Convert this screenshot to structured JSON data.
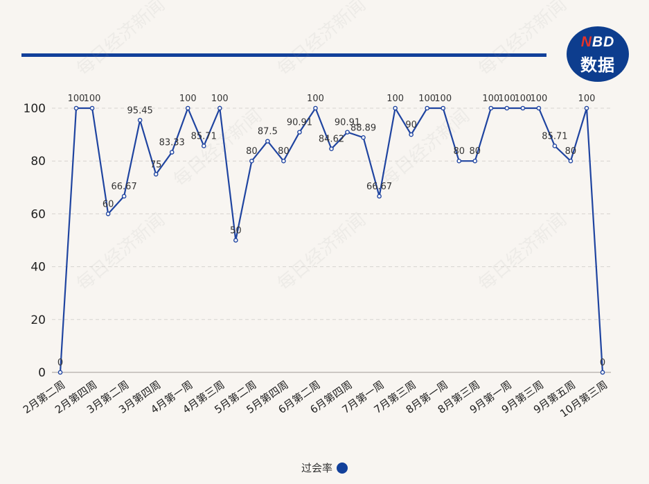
{
  "colors": {
    "line": "#1f44a0",
    "rule": "#12409a",
    "logo_bg": "#0d3d8e",
    "logo_accent": "#e5332a",
    "grid": "#d6d3cf",
    "background": "#f8f5f1"
  },
  "logo": {
    "line1_accent": "N",
    "line1_rest": "BD",
    "line2": "数据"
  },
  "watermark": "每日经济新闻",
  "chart_data": {
    "type": "line",
    "title": "",
    "xlabel": "",
    "ylabel": "",
    "ylim": [
      0,
      100
    ],
    "yticks": [
      0,
      20,
      40,
      60,
      80,
      100
    ],
    "grid": true,
    "legend_position": "bottom-center",
    "x_tick_labels": [
      "2月第二周",
      "2月第四周",
      "3月第二周",
      "3月第四周",
      "4月第一周",
      "4月第三周",
      "5月第二周",
      "5月第四周",
      "6月第二周",
      "6月第四周",
      "7月第一周",
      "7月第三周",
      "8月第一周",
      "8月第三周",
      "9月第一周",
      "9月第三周",
      "9月第五周",
      "10月第三周"
    ],
    "series": [
      {
        "name": "过会率",
        "values": [
          0,
          100,
          100,
          60,
          66.67,
          95.45,
          75,
          83.33,
          100,
          85.71,
          100,
          50,
          80,
          87.5,
          80,
          90.91,
          100,
          84.62,
          90.91,
          88.89,
          66.67,
          100,
          90,
          100,
          100,
          80,
          80,
          100,
          100,
          100,
          100,
          85.71,
          80,
          100,
          0
        ],
        "labels": [
          "0",
          "100",
          "100",
          "60",
          "66.67",
          "95.45",
          "75",
          "83.33",
          "100",
          "85.71",
          "100",
          "50",
          "80",
          "87.5",
          "80",
          "90.91",
          "100",
          "84.62",
          "90.91",
          "88.89",
          "66.67",
          "100",
          "90",
          "100",
          "100",
          "80",
          "80",
          "100",
          "100",
          "100",
          "100",
          "85.71",
          "80",
          "100",
          "0"
        ]
      }
    ]
  }
}
